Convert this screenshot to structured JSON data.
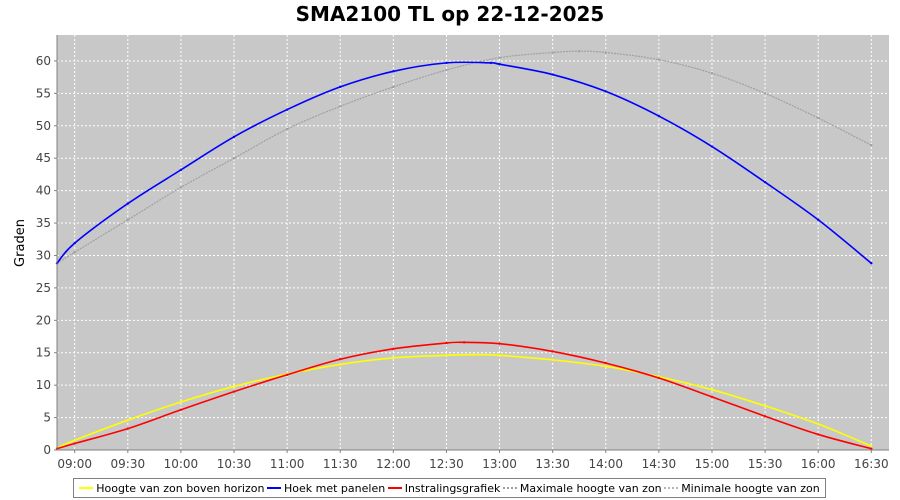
{
  "chart_data": {
    "type": "line",
    "title": "SMA2100 TL op 22-12-2025",
    "ylabel": "Graden",
    "xlabel": "",
    "ylim": [
      0,
      64
    ],
    "xlim": [
      "08:50",
      "16:40"
    ],
    "yticks": [
      0,
      5,
      10,
      15,
      20,
      25,
      30,
      35,
      40,
      45,
      50,
      55,
      60
    ],
    "xticks": [
      "09:00",
      "09:30",
      "10:00",
      "10:30",
      "11:00",
      "11:30",
      "12:00",
      "12:30",
      "13:00",
      "13:30",
      "14:00",
      "14:30",
      "15:00",
      "15:30",
      "16:00",
      "16:30"
    ],
    "grid": true,
    "legend_position": "bottom",
    "series": [
      {
        "name": "Hoogte van zon boven horizon",
        "color": "#ffff00",
        "x": [
          "08:50",
          "09:00",
          "09:30",
          "10:00",
          "10:30",
          "11:00",
          "11:30",
          "12:00",
          "12:30",
          "12:45",
          "13:00",
          "13:30",
          "14:00",
          "14:30",
          "15:00",
          "15:30",
          "16:00",
          "16:30"
        ],
        "y": [
          0.3,
          1.5,
          4.6,
          7.4,
          9.8,
          11.7,
          13.2,
          14.2,
          14.6,
          14.7,
          14.6,
          13.9,
          12.9,
          11.3,
          9.3,
          6.8,
          4.0,
          0.6
        ]
      },
      {
        "name": "Hoek met panelen",
        "color": "#0000ff",
        "x": [
          "08:50",
          "09:00",
          "09:30",
          "10:00",
          "10:30",
          "11:00",
          "11:30",
          "12:00",
          "12:30",
          "12:55",
          "13:00",
          "13:30",
          "14:00",
          "14:30",
          "15:00",
          "15:30",
          "16:00",
          "16:30"
        ],
        "y": [
          28.8,
          31.9,
          38.0,
          43.2,
          48.3,
          52.5,
          56.0,
          58.4,
          59.7,
          59.7,
          59.5,
          57.9,
          55.3,
          51.5,
          46.8,
          41.3,
          35.5,
          28.8
        ]
      },
      {
        "name": "Instralingsgrafiek",
        "color": "#ff0000",
        "x": [
          "08:50",
          "09:00",
          "09:30",
          "10:00",
          "10:30",
          "11:00",
          "11:30",
          "12:00",
          "12:30",
          "12:40",
          "13:00",
          "13:30",
          "14:00",
          "14:30",
          "15:00",
          "15:30",
          "16:00",
          "16:30"
        ],
        "y": [
          0.2,
          1.0,
          3.3,
          6.2,
          9.0,
          11.6,
          14.0,
          15.6,
          16.5,
          16.6,
          16.4,
          15.2,
          13.4,
          11.1,
          8.2,
          5.2,
          2.4,
          0.2
        ]
      },
      {
        "name": "Maximale hoogte van zon",
        "color": "#a0a0a0",
        "x": [
          "08:50",
          "09:00",
          "09:30",
          "10:00",
          "10:30",
          "11:00",
          "11:30",
          "12:00",
          "12:30",
          "13:00",
          "13:30",
          "13:45",
          "14:00",
          "14:30",
          "15:00",
          "15:30",
          "16:00",
          "16:30"
        ],
        "y": [
          28.8,
          30.5,
          35.5,
          40.5,
          45.0,
          49.5,
          53.0,
          56.0,
          58.6,
          60.5,
          61.3,
          61.5,
          61.3,
          60.2,
          58.1,
          55.0,
          51.2,
          47.0
        ]
      },
      {
        "name": "Minimale hoogte van zon",
        "color": "#b4b4b4",
        "x": [],
        "y": []
      }
    ]
  }
}
